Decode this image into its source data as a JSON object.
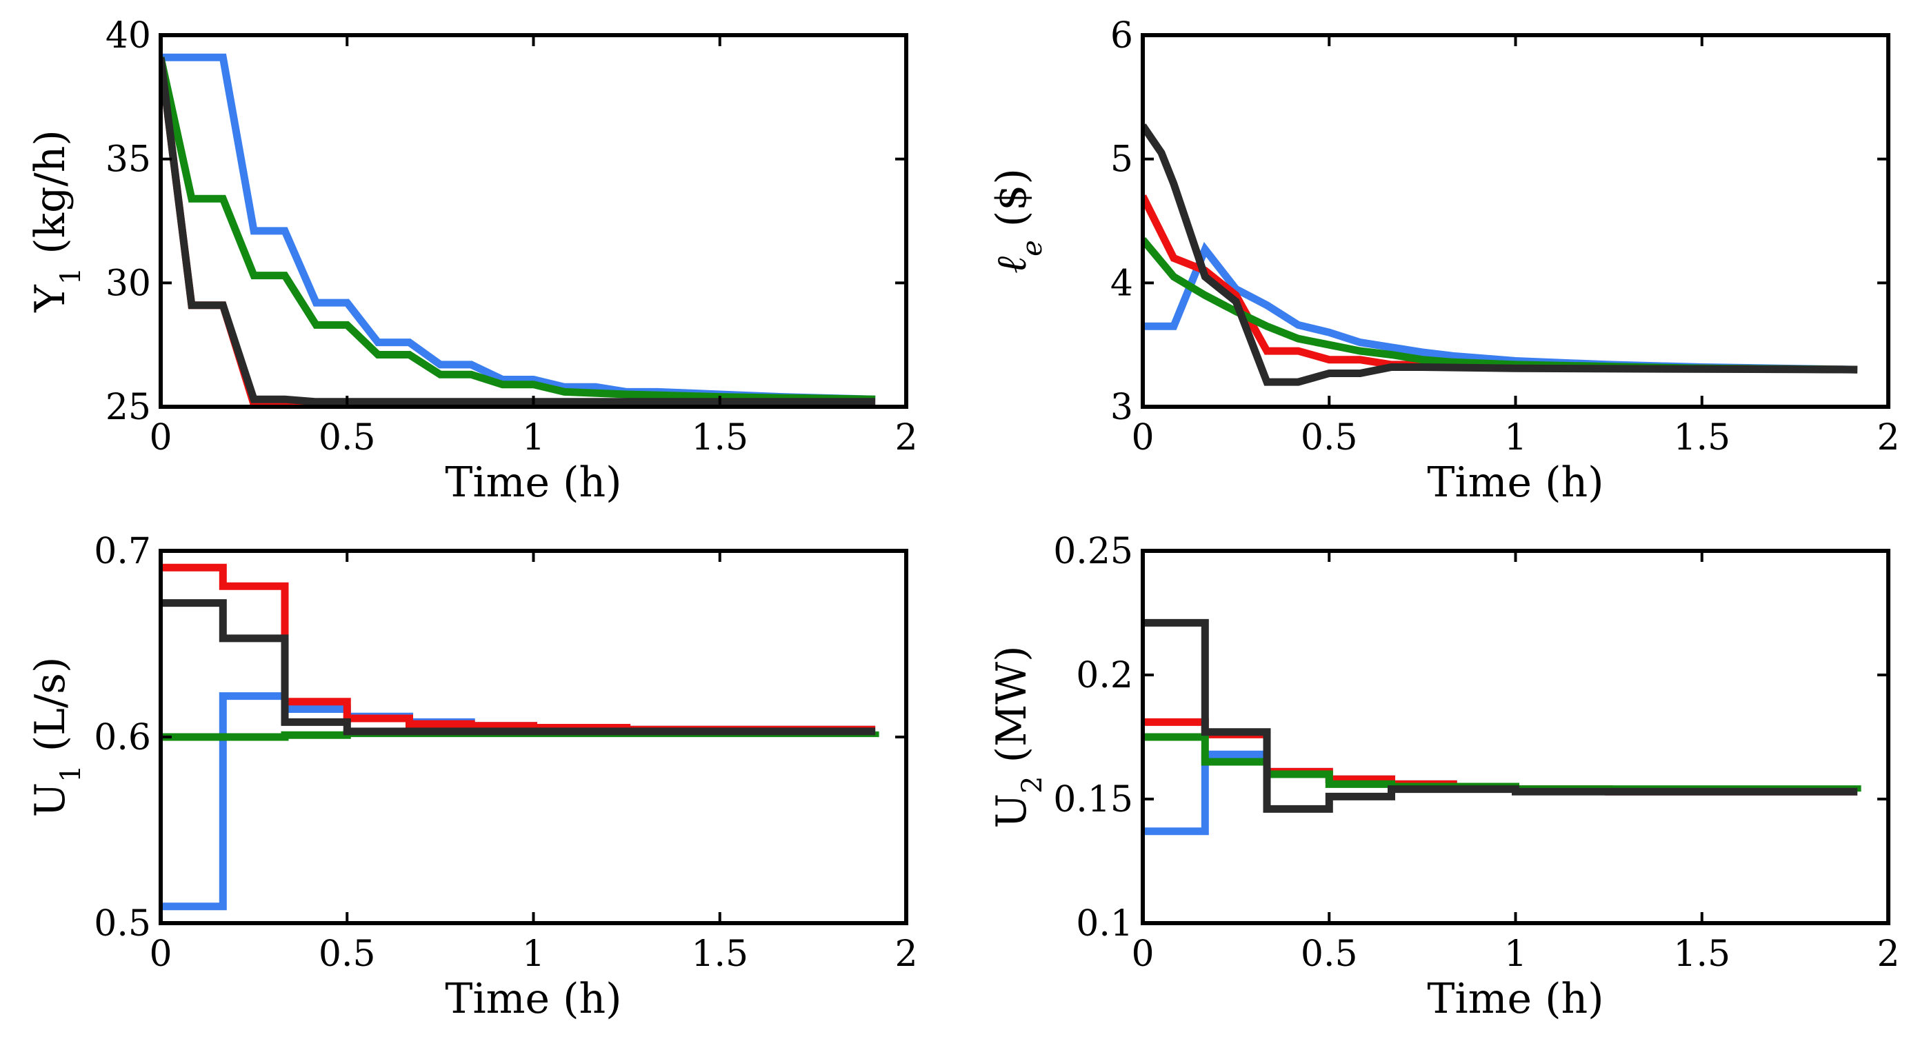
{
  "colors": {
    "blue": "#3a7ef0",
    "red": "#ee1111",
    "green": "#128a12",
    "black": "#2a2a2a"
  },
  "chart_data": [
    {
      "type": "line",
      "id": "y1",
      "xlabel": "Time (h)",
      "ylabel": "Y",
      "ylabel_sub": "1",
      "ylabel_unit": " (kg/h)",
      "xlim": [
        0,
        2
      ],
      "ylim": [
        25,
        40
      ],
      "xticks": [
        0,
        0.5,
        1,
        1.5,
        2
      ],
      "xtick_labels": [
        "0",
        "0.5",
        "1",
        "1.5",
        "2"
      ],
      "yticks": [
        25,
        30,
        35,
        40
      ],
      "ytick_labels": [
        "25",
        "30",
        "35",
        "40"
      ],
      "series": [
        {
          "color": "blue",
          "x": [
            0,
            0.167,
            0.25,
            0.333,
            0.417,
            0.5,
            0.583,
            0.667,
            0.75,
            0.833,
            0.917,
            1.0,
            1.083,
            1.167,
            1.25,
            1.333,
            1.5,
            1.667,
            1.917
          ],
          "y": [
            39.1,
            39.1,
            32.1,
            32.1,
            29.2,
            29.2,
            27.6,
            27.6,
            26.7,
            26.7,
            26.1,
            26.1,
            25.8,
            25.8,
            25.6,
            25.6,
            25.5,
            25.4,
            25.3
          ]
        },
        {
          "color": "green",
          "x": [
            0,
            0.083,
            0.167,
            0.25,
            0.333,
            0.417,
            0.5,
            0.583,
            0.667,
            0.75,
            0.833,
            0.917,
            1.0,
            1.083,
            1.25,
            1.5,
            1.917
          ],
          "y": [
            39.1,
            33.4,
            33.4,
            30.3,
            30.3,
            28.3,
            28.3,
            27.1,
            27.1,
            26.3,
            26.3,
            25.9,
            25.9,
            25.6,
            25.5,
            25.4,
            25.3
          ]
        },
        {
          "color": "red",
          "x": [
            0,
            0.083,
            0.167,
            0.25,
            0.333,
            1.917
          ],
          "y": [
            39.1,
            29.1,
            29.1,
            25.1,
            25.1,
            25.1
          ]
        },
        {
          "color": "black",
          "x": [
            0,
            0.083,
            0.167,
            0.25,
            0.333,
            0.417,
            1.917
          ],
          "y": [
            39.1,
            29.1,
            29.1,
            25.3,
            25.3,
            25.2,
            25.2
          ]
        }
      ]
    },
    {
      "type": "line",
      "id": "le",
      "xlabel": "Time (h)",
      "ylabel": "ℓ",
      "ylabel_sub": "e",
      "ylabel_unit": " ($)",
      "xlim": [
        0,
        2
      ],
      "ylim": [
        3,
        6
      ],
      "xticks": [
        0,
        0.5,
        1,
        1.5,
        2
      ],
      "xtick_labels": [
        "0",
        "0.5",
        "1",
        "1.5",
        "2"
      ],
      "yticks": [
        3,
        4,
        5,
        6
      ],
      "ytick_labels": [
        "3",
        "4",
        "5",
        "6"
      ],
      "series": [
        {
          "color": "blue",
          "x": [
            0,
            0.083,
            0.167,
            0.25,
            0.333,
            0.417,
            0.5,
            0.583,
            0.667,
            0.75,
            0.833,
            1.0,
            1.25,
            1.5,
            1.917
          ],
          "y": [
            3.65,
            3.65,
            4.27,
            3.95,
            3.82,
            3.66,
            3.6,
            3.52,
            3.48,
            3.44,
            3.41,
            3.37,
            3.34,
            3.32,
            3.3
          ]
        },
        {
          "color": "red",
          "x": [
            0,
            0.083,
            0.167,
            0.25,
            0.333,
            0.417,
            0.5,
            0.583,
            0.667,
            0.75,
            1.0,
            1.5,
            1.917
          ],
          "y": [
            4.7,
            4.2,
            4.1,
            3.9,
            3.45,
            3.45,
            3.38,
            3.38,
            3.34,
            3.34,
            3.32,
            3.31,
            3.3
          ]
        },
        {
          "color": "green",
          "x": [
            0,
            0.083,
            0.167,
            0.25,
            0.333,
            0.417,
            0.5,
            0.583,
            0.667,
            0.75,
            0.833,
            1.0,
            1.5,
            1.917
          ],
          "y": [
            4.35,
            4.05,
            3.9,
            3.77,
            3.65,
            3.55,
            3.5,
            3.45,
            3.42,
            3.38,
            3.36,
            3.34,
            3.31,
            3.3
          ]
        },
        {
          "color": "black",
          "x": [
            0,
            0.05,
            0.083,
            0.167,
            0.25,
            0.333,
            0.417,
            0.5,
            0.583,
            0.667,
            0.75,
            1.0,
            1.917
          ],
          "y": [
            5.27,
            5.05,
            4.8,
            4.05,
            3.85,
            3.2,
            3.2,
            3.27,
            3.27,
            3.32,
            3.32,
            3.31,
            3.3
          ]
        }
      ]
    },
    {
      "type": "line",
      "id": "u1",
      "xlabel": "Time (h)",
      "ylabel": "U",
      "ylabel_sub": "1",
      "ylabel_unit": " (L/s)",
      "xlim": [
        0,
        2
      ],
      "ylim": [
        0.5,
        0.7
      ],
      "xticks": [
        0,
        0.5,
        1,
        1.5,
        2
      ],
      "xtick_labels": [
        "0",
        "0.5",
        "1",
        "1.5",
        "2"
      ],
      "yticks": [
        0.5,
        0.6,
        0.7
      ],
      "ytick_labels": [
        "0.5",
        "0.6",
        "0.7"
      ],
      "series": [
        {
          "color": "blue",
          "step": true,
          "x": [
            0,
            0.167,
            0.333,
            0.5,
            0.667,
            0.833,
            1.0,
            1.25,
            1.917
          ],
          "y": [
            0.509,
            0.622,
            0.615,
            0.611,
            0.608,
            0.606,
            0.605,
            0.604,
            0.604
          ]
        },
        {
          "color": "red",
          "step": true,
          "x": [
            0,
            0.167,
            0.333,
            0.5,
            0.667,
            0.833,
            1.0,
            1.25,
            1.917
          ],
          "y": [
            0.691,
            0.681,
            0.619,
            0.61,
            0.607,
            0.606,
            0.605,
            0.604,
            0.604
          ]
        },
        {
          "color": "green",
          "step": true,
          "x": [
            0,
            0.333,
            0.5,
            1.917
          ],
          "y": [
            0.6,
            0.601,
            0.602,
            0.603
          ]
        },
        {
          "color": "black",
          "step": true,
          "x": [
            0,
            0.167,
            0.333,
            0.5,
            0.667,
            1.0,
            1.917
          ],
          "y": [
            0.672,
            0.653,
            0.608,
            0.603,
            0.603,
            0.603,
            0.603
          ]
        }
      ]
    },
    {
      "type": "line",
      "id": "u2",
      "xlabel": "Time (h)",
      "ylabel": "U",
      "ylabel_sub": "2",
      "ylabel_unit": " (MW)",
      "xlim": [
        0,
        2
      ],
      "ylim": [
        0.1,
        0.25
      ],
      "xticks": [
        0,
        0.5,
        1,
        1.5,
        2
      ],
      "xtick_labels": [
        "0",
        "0.5",
        "1",
        "1.5",
        "2"
      ],
      "yticks": [
        0.1,
        0.15,
        0.2,
        0.25
      ],
      "ytick_labels": [
        "0.1",
        "0.15",
        "0.2",
        "0.25"
      ],
      "series": [
        {
          "color": "blue",
          "step": true,
          "x": [
            0,
            0.167,
            0.333,
            0.5,
            0.667,
            0.833,
            1.0,
            1.25,
            1.917
          ],
          "y": [
            0.137,
            0.168,
            0.161,
            0.158,
            0.156,
            0.155,
            0.154,
            0.153,
            0.153
          ]
        },
        {
          "color": "red",
          "step": true,
          "x": [
            0,
            0.167,
            0.333,
            0.5,
            0.667,
            0.833,
            1.0,
            1.25,
            1.917
          ],
          "y": [
            0.181,
            0.176,
            0.161,
            0.158,
            0.156,
            0.155,
            0.154,
            0.153,
            0.153
          ]
        },
        {
          "color": "green",
          "step": true,
          "x": [
            0,
            0.167,
            0.333,
            0.5,
            0.667,
            1.0,
            1.917
          ],
          "y": [
            0.175,
            0.165,
            0.16,
            0.156,
            0.155,
            0.154,
            0.153
          ]
        },
        {
          "color": "black",
          "step": true,
          "x": [
            0,
            0.167,
            0.333,
            0.5,
            0.667,
            1.0,
            1.917
          ],
          "y": [
            0.221,
            0.177,
            0.146,
            0.151,
            0.154,
            0.153,
            0.153
          ]
        }
      ]
    }
  ]
}
